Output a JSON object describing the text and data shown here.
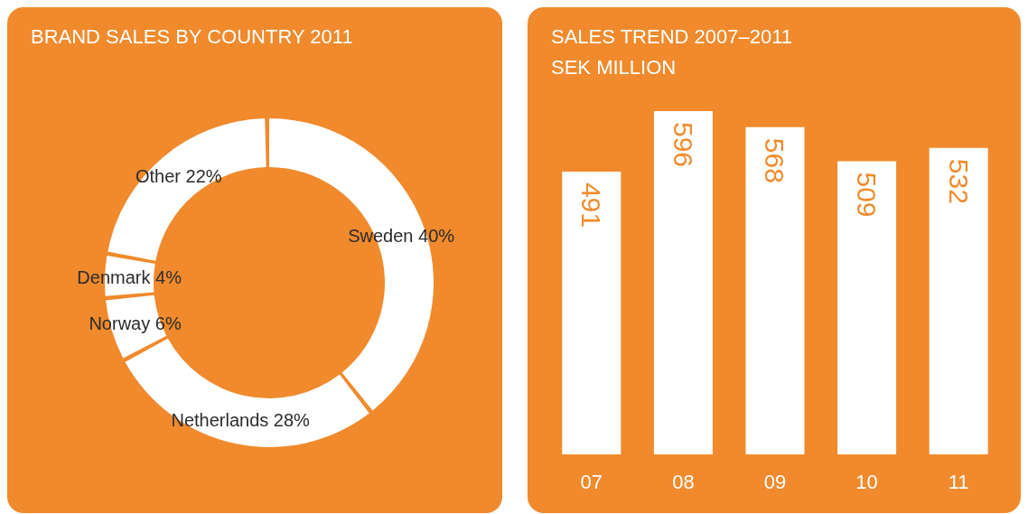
{
  "chart_data": [
    {
      "type": "donut",
      "title": "BRAND SALES BY COUNTRY 2011",
      "categories": [
        "Sweden",
        "Netherlands",
        "Norway",
        "Denmark",
        "Other"
      ],
      "values": [
        40,
        28,
        6,
        4,
        22
      ],
      "colors": [
        "#ffffff",
        "#ffffff",
        "#ffffff",
        "#ffffff",
        "#ffffff"
      ],
      "value_labels": [
        "40%",
        "28%",
        "6%",
        "4%",
        "22%"
      ]
    },
    {
      "type": "bar",
      "title": "SALES TREND 2007–2011",
      "subtitle": "SEK MILLION",
      "categories": [
        "07",
        "08",
        "09",
        "10",
        "11"
      ],
      "values": [
        491,
        596,
        568,
        509,
        532
      ],
      "color": "#ffffff",
      "data_labels": true
    }
  ]
}
